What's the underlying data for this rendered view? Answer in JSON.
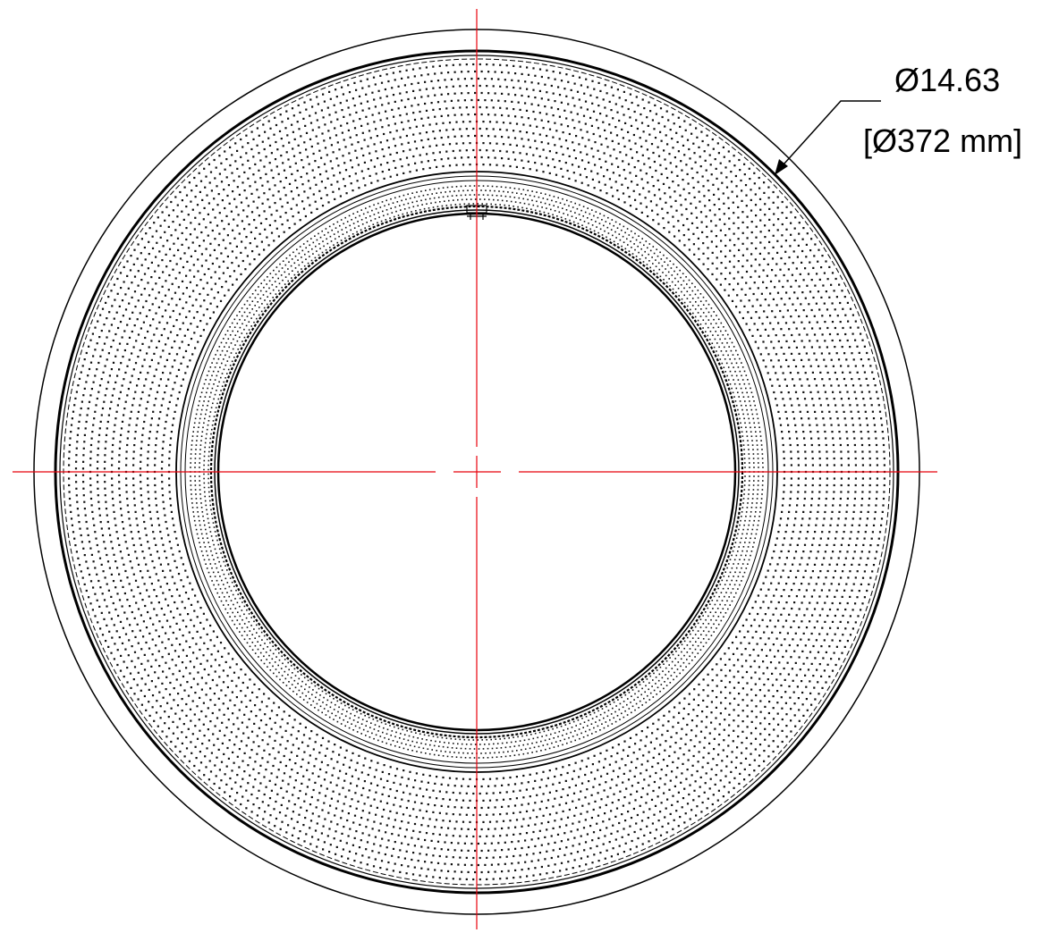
{
  "dimension": {
    "primary_label": "Ø14.63",
    "secondary_label": "[Ø372 mm]"
  },
  "colors": {
    "line": "#000000",
    "centerline": "#e8000b",
    "background": "#ffffff"
  },
  "elements": {
    "outer_ring": "outer-circle",
    "housing_rings": "housing-rings",
    "dotted_field": "dotted-pattern",
    "inner_bore": "inner-circle",
    "centerlines": "centerline-crosshair",
    "leader": "leader-arrow"
  }
}
